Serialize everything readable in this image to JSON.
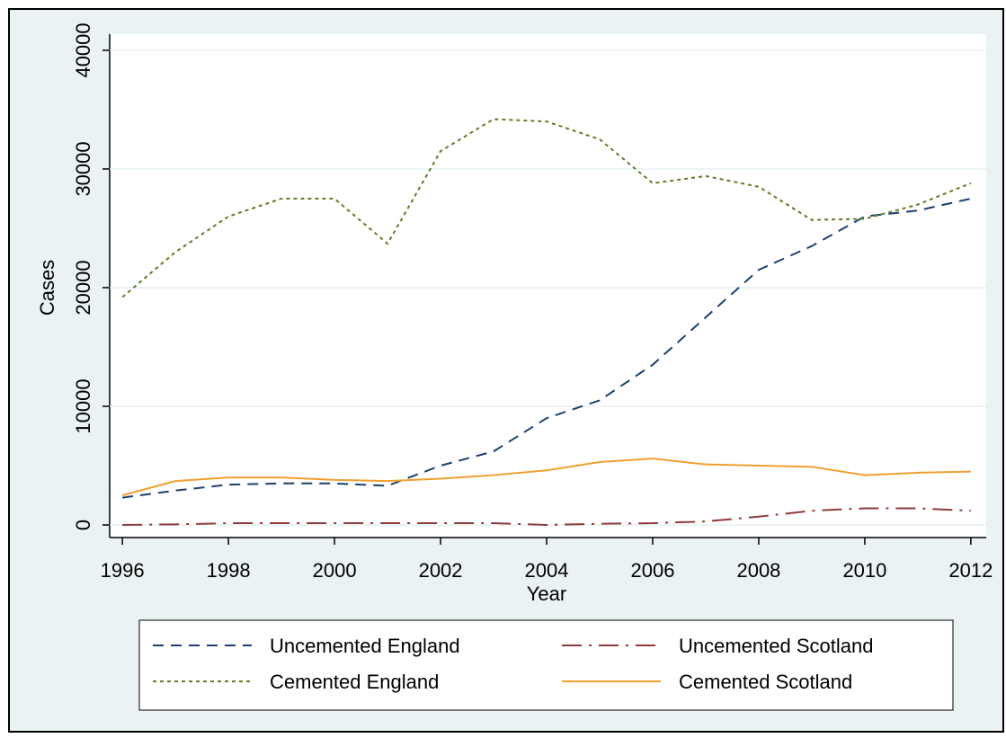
{
  "chart_data": {
    "type": "line",
    "x_label": "Year",
    "y_label": "Cases",
    "x": [
      1996,
      1997,
      1998,
      1999,
      2000,
      2001,
      2002,
      2003,
      2004,
      2005,
      2006,
      2007,
      2008,
      2009,
      2010,
      2011,
      2012
    ],
    "series": [
      {
        "name": "Uncemented England",
        "color": "#1f3f6e",
        "dash": "12,8",
        "values": [
          2300,
          2900,
          3400,
          3500,
          3500,
          3300,
          5000,
          6200,
          9000,
          10500,
          13500,
          17500,
          21500,
          23500,
          26000,
          26500,
          27500
        ]
      },
      {
        "name": "Uncemented Scotland",
        "color": "#8e3b3b",
        "dash": "22,8,3,8",
        "values": [
          0,
          50,
          150,
          150,
          150,
          150,
          150,
          150,
          0,
          100,
          150,
          300,
          700,
          1200,
          1400,
          1400,
          1200
        ]
      },
      {
        "name": "Cemented England",
        "color": "#5f7d2c",
        "dash": "4,4",
        "values": [
          19200,
          23000,
          26000,
          27500,
          27500,
          23700,
          31500,
          34200,
          34000,
          32500,
          28800,
          29400,
          28500,
          25700,
          25800,
          27000,
          28800
        ]
      },
      {
        "name": "Cemented Scotland",
        "color": "#f0a030",
        "dash": "none",
        "values": [
          2500,
          3700,
          4000,
          4000,
          3800,
          3700,
          3900,
          4200,
          4600,
          5300,
          5600,
          5100,
          5000,
          4900,
          4200,
          4400,
          4500
        ]
      }
    ],
    "xlim": [
      1995.76,
      2012.29
    ],
    "xticks": [
      1996,
      1998,
      2000,
      2002,
      2004,
      2006,
      2008,
      2010,
      2012
    ],
    "ylim": [
      -1060,
      41360
    ],
    "yticks": [
      0,
      10000,
      20000,
      30000,
      40000
    ],
    "grid": true,
    "legend_position": "bottom",
    "legend_columns": 2
  }
}
